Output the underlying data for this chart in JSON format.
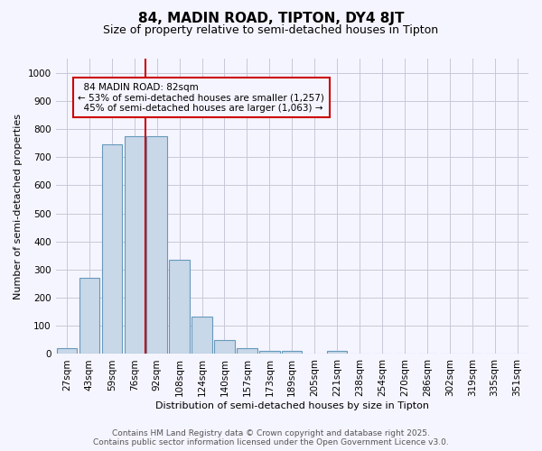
{
  "title": "84, MADIN ROAD, TIPTON, DY4 8JT",
  "subtitle": "Size of property relative to semi-detached houses in Tipton",
  "xlabel": "Distribution of semi-detached houses by size in Tipton",
  "ylabel": "Number of semi-detached properties",
  "categories": [
    "27sqm",
    "43sqm",
    "59sqm",
    "76sqm",
    "92sqm",
    "108sqm",
    "124sqm",
    "140sqm",
    "157sqm",
    "173sqm",
    "189sqm",
    "205sqm",
    "221sqm",
    "238sqm",
    "254sqm",
    "270sqm",
    "286sqm",
    "302sqm",
    "319sqm",
    "335sqm",
    "351sqm"
  ],
  "values": [
    20,
    270,
    745,
    775,
    775,
    335,
    133,
    48,
    22,
    12,
    11,
    0,
    11,
    0,
    0,
    0,
    0,
    0,
    0,
    0,
    0
  ],
  "bar_color": "#c8d8e8",
  "bar_edge_color": "#6699bb",
  "annotation_box_color": "#cc0000",
  "property_line_label": "84 MADIN ROAD: 82sqm",
  "pct_smaller": "53%",
  "pct_smaller_count": "1,257",
  "pct_larger": "45%",
  "pct_larger_count": "1,063",
  "ylim": [
    0,
    1050
  ],
  "yticks": [
    0,
    100,
    200,
    300,
    400,
    500,
    600,
    700,
    800,
    900,
    1000
  ],
  "bg_color": "#f5f5ff",
  "grid_color": "#c8c8d8",
  "footer_line1": "Contains HM Land Registry data © Crown copyright and database right 2025.",
  "footer_line2": "Contains public sector information licensed under the Open Government Licence v3.0.",
  "title_fontsize": 11,
  "subtitle_fontsize": 9,
  "axis_label_fontsize": 8,
  "tick_fontsize": 7.5,
  "footer_fontsize": 6.5
}
